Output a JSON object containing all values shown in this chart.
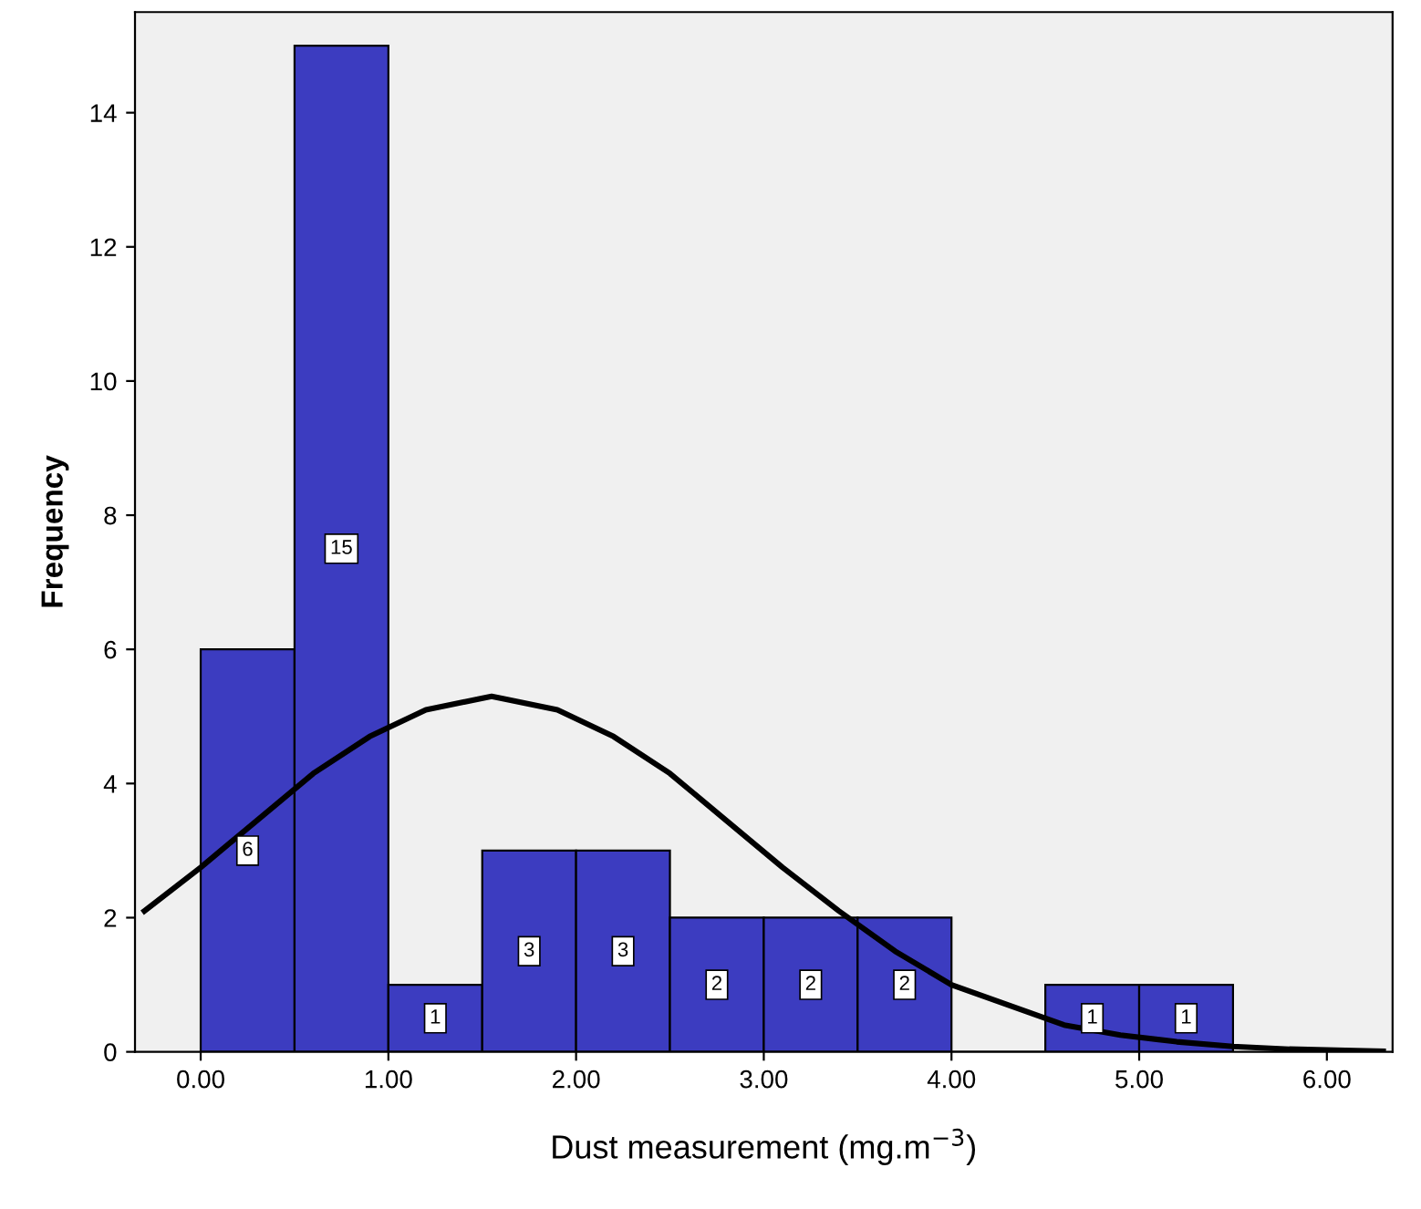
{
  "chart_data": {
    "type": "histogram",
    "xlabel": "Dust measurement (mg.m$^{−3}$)",
    "ylabel": "Frequency",
    "bins": [
      0,
      0.5,
      1.0,
      1.5,
      2.0,
      2.5,
      3.0,
      3.5,
      4.0,
      4.5,
      5.0,
      5.5
    ],
    "values": [
      6,
      15,
      1,
      3,
      3,
      2,
      2,
      2,
      0,
      1,
      1
    ],
    "value_labels": [
      "6",
      "15",
      "1",
      "3",
      "3",
      "2",
      "2",
      "2",
      null,
      "1",
      "1"
    ],
    "color": "#3c3cc0",
    "series": [
      {
        "type": "line",
        "color": "#000000",
        "x": [
          -0.3,
          0,
          0.3,
          0.6,
          0.9,
          1.2,
          1.55,
          1.9,
          2.2,
          2.5,
          2.8,
          3.1,
          3.4,
          3.7,
          4.0,
          4.3,
          4.6,
          4.9,
          5.2,
          5.5,
          5.8,
          6.1,
          6.3
        ],
        "values": [
          2.1,
          2.75,
          3.45,
          4.15,
          4.7,
          5.1,
          5.3,
          5.1,
          4.7,
          4.15,
          3.45,
          2.75,
          2.1,
          1.5,
          1.0,
          0.7,
          0.4,
          0.25,
          0.15,
          0.08,
          0.04,
          0.02,
          0.01
        ]
      }
    ],
    "xlim": [
      -0.35,
      6.35
    ],
    "ylim": [
      0,
      15.5
    ],
    "xticks": [
      {
        "value": 0,
        "label": "0.00"
      },
      {
        "value": 1,
        "label": "1.00"
      },
      {
        "value": 2,
        "label": "2.00"
      },
      {
        "value": 3,
        "label": "3.00"
      },
      {
        "value": 4,
        "label": "4.00"
      },
      {
        "value": 5,
        "label": "5.00"
      },
      {
        "value": 6,
        "label": "6.00"
      }
    ],
    "yticks": [
      0,
      2,
      4,
      6,
      8,
      10,
      12,
      14
    ],
    "grid": false,
    "legend": false
  }
}
